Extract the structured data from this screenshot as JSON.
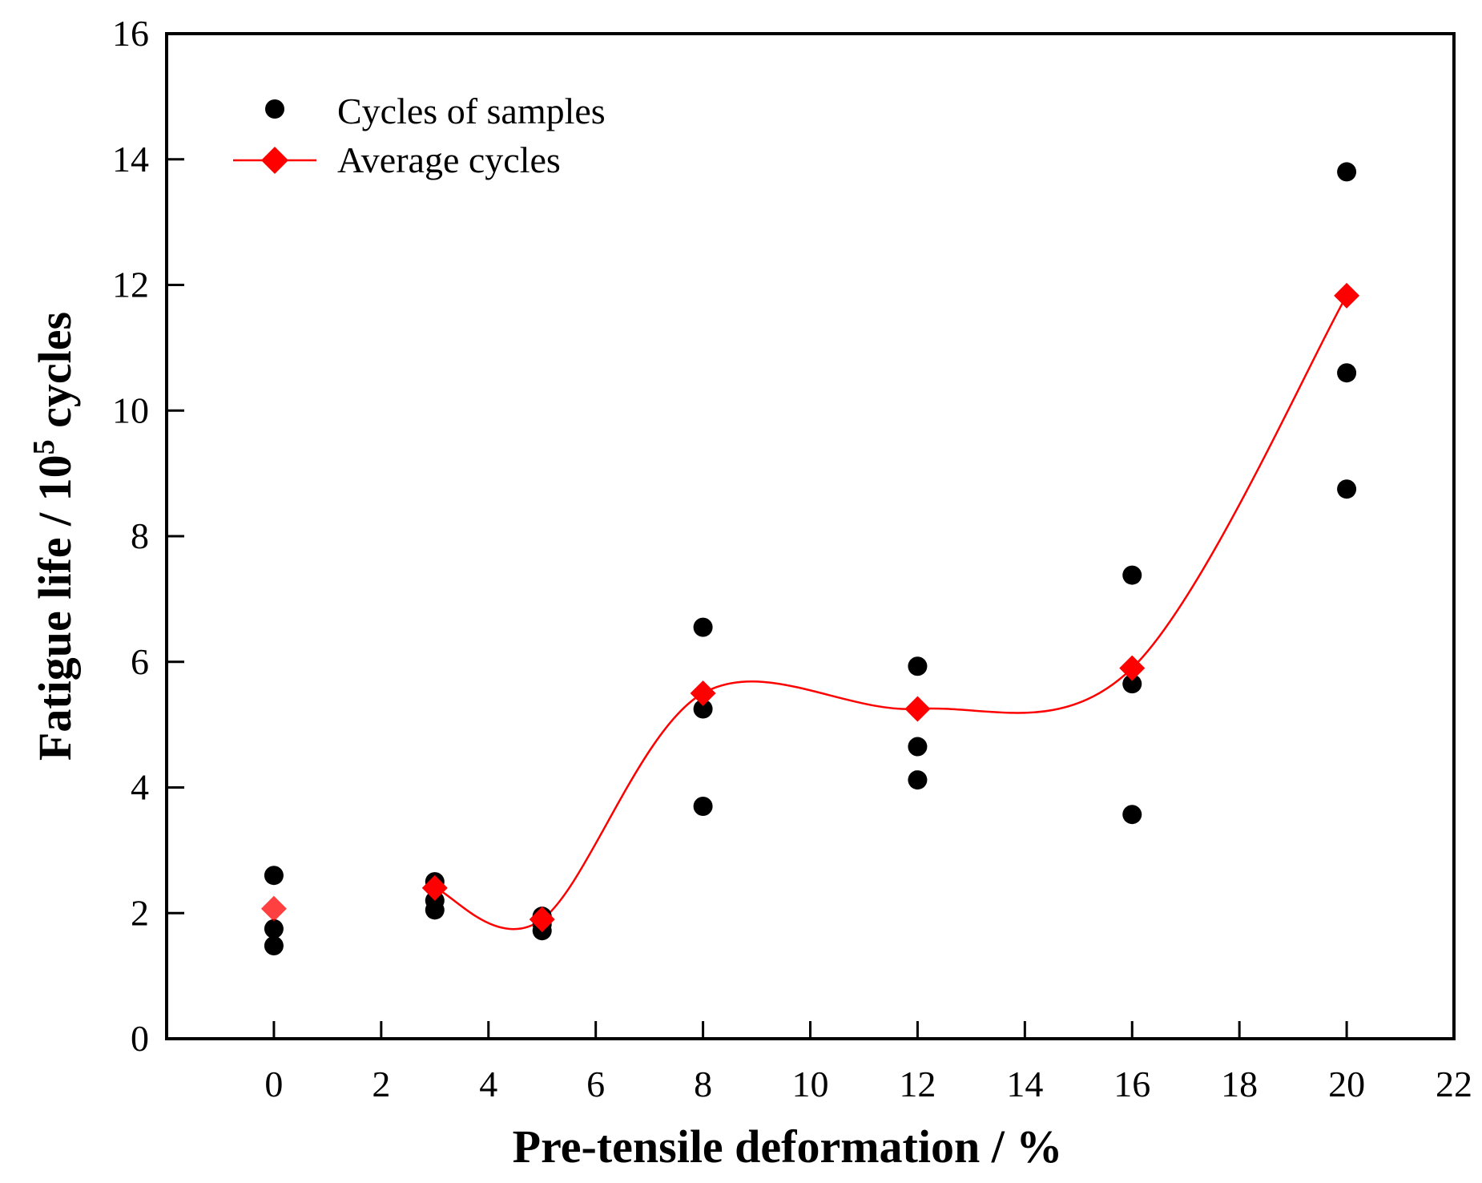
{
  "chart_data": {
    "type": "scatter",
    "title": "",
    "xlabel": "Pre-tensile deformation / %",
    "ylabel": {
      "prefix": "Fatigue life / 10",
      "superscript": "5",
      "suffix": " cycles"
    },
    "xlim": [
      -2,
      22
    ],
    "ylim": [
      0,
      16
    ],
    "x_ticks": [
      0,
      2,
      4,
      6,
      8,
      10,
      12,
      14,
      16,
      18,
      20,
      22
    ],
    "y_ticks": [
      0,
      2,
      4,
      6,
      8,
      10,
      12,
      14,
      16
    ],
    "grid": false,
    "legend_position": "top-left",
    "series": [
      {
        "name": "Cycles of samples",
        "marker": "circle",
        "color": "#000000",
        "line": false,
        "points": [
          {
            "x": 0,
            "y": 2.6
          },
          {
            "x": 0,
            "y": 1.75
          },
          {
            "x": 0,
            "y": 1.48
          },
          {
            "x": 3,
            "y": 2.5
          },
          {
            "x": 3,
            "y": 2.2
          },
          {
            "x": 3,
            "y": 2.05
          },
          {
            "x": 5,
            "y": 1.95
          },
          {
            "x": 5,
            "y": 1.82
          },
          {
            "x": 5,
            "y": 1.72
          },
          {
            "x": 8,
            "y": 6.55
          },
          {
            "x": 8,
            "y": 5.25
          },
          {
            "x": 8,
            "y": 3.7
          },
          {
            "x": 12,
            "y": 5.93
          },
          {
            "x": 12,
            "y": 4.65
          },
          {
            "x": 12,
            "y": 4.12
          },
          {
            "x": 16,
            "y": 7.38
          },
          {
            "x": 16,
            "y": 5.65
          },
          {
            "x": 16,
            "y": 3.57
          },
          {
            "x": 20,
            "y": 13.8
          },
          {
            "x": 20,
            "y": 10.6
          },
          {
            "x": 20,
            "y": 8.75
          }
        ]
      },
      {
        "name": "Average cycles",
        "marker": "diamond",
        "color": "#ff0000",
        "line": true,
        "line_style": "smooth",
        "points": [
          {
            "x": 0,
            "y": 2.07
          },
          {
            "x": 3,
            "y": 2.4
          },
          {
            "x": 5,
            "y": 1.9
          },
          {
            "x": 8,
            "y": 5.5
          },
          {
            "x": 12,
            "y": 5.25
          },
          {
            "x": 16,
            "y": 5.9
          },
          {
            "x": 20,
            "y": 11.83
          }
        ]
      }
    ]
  }
}
